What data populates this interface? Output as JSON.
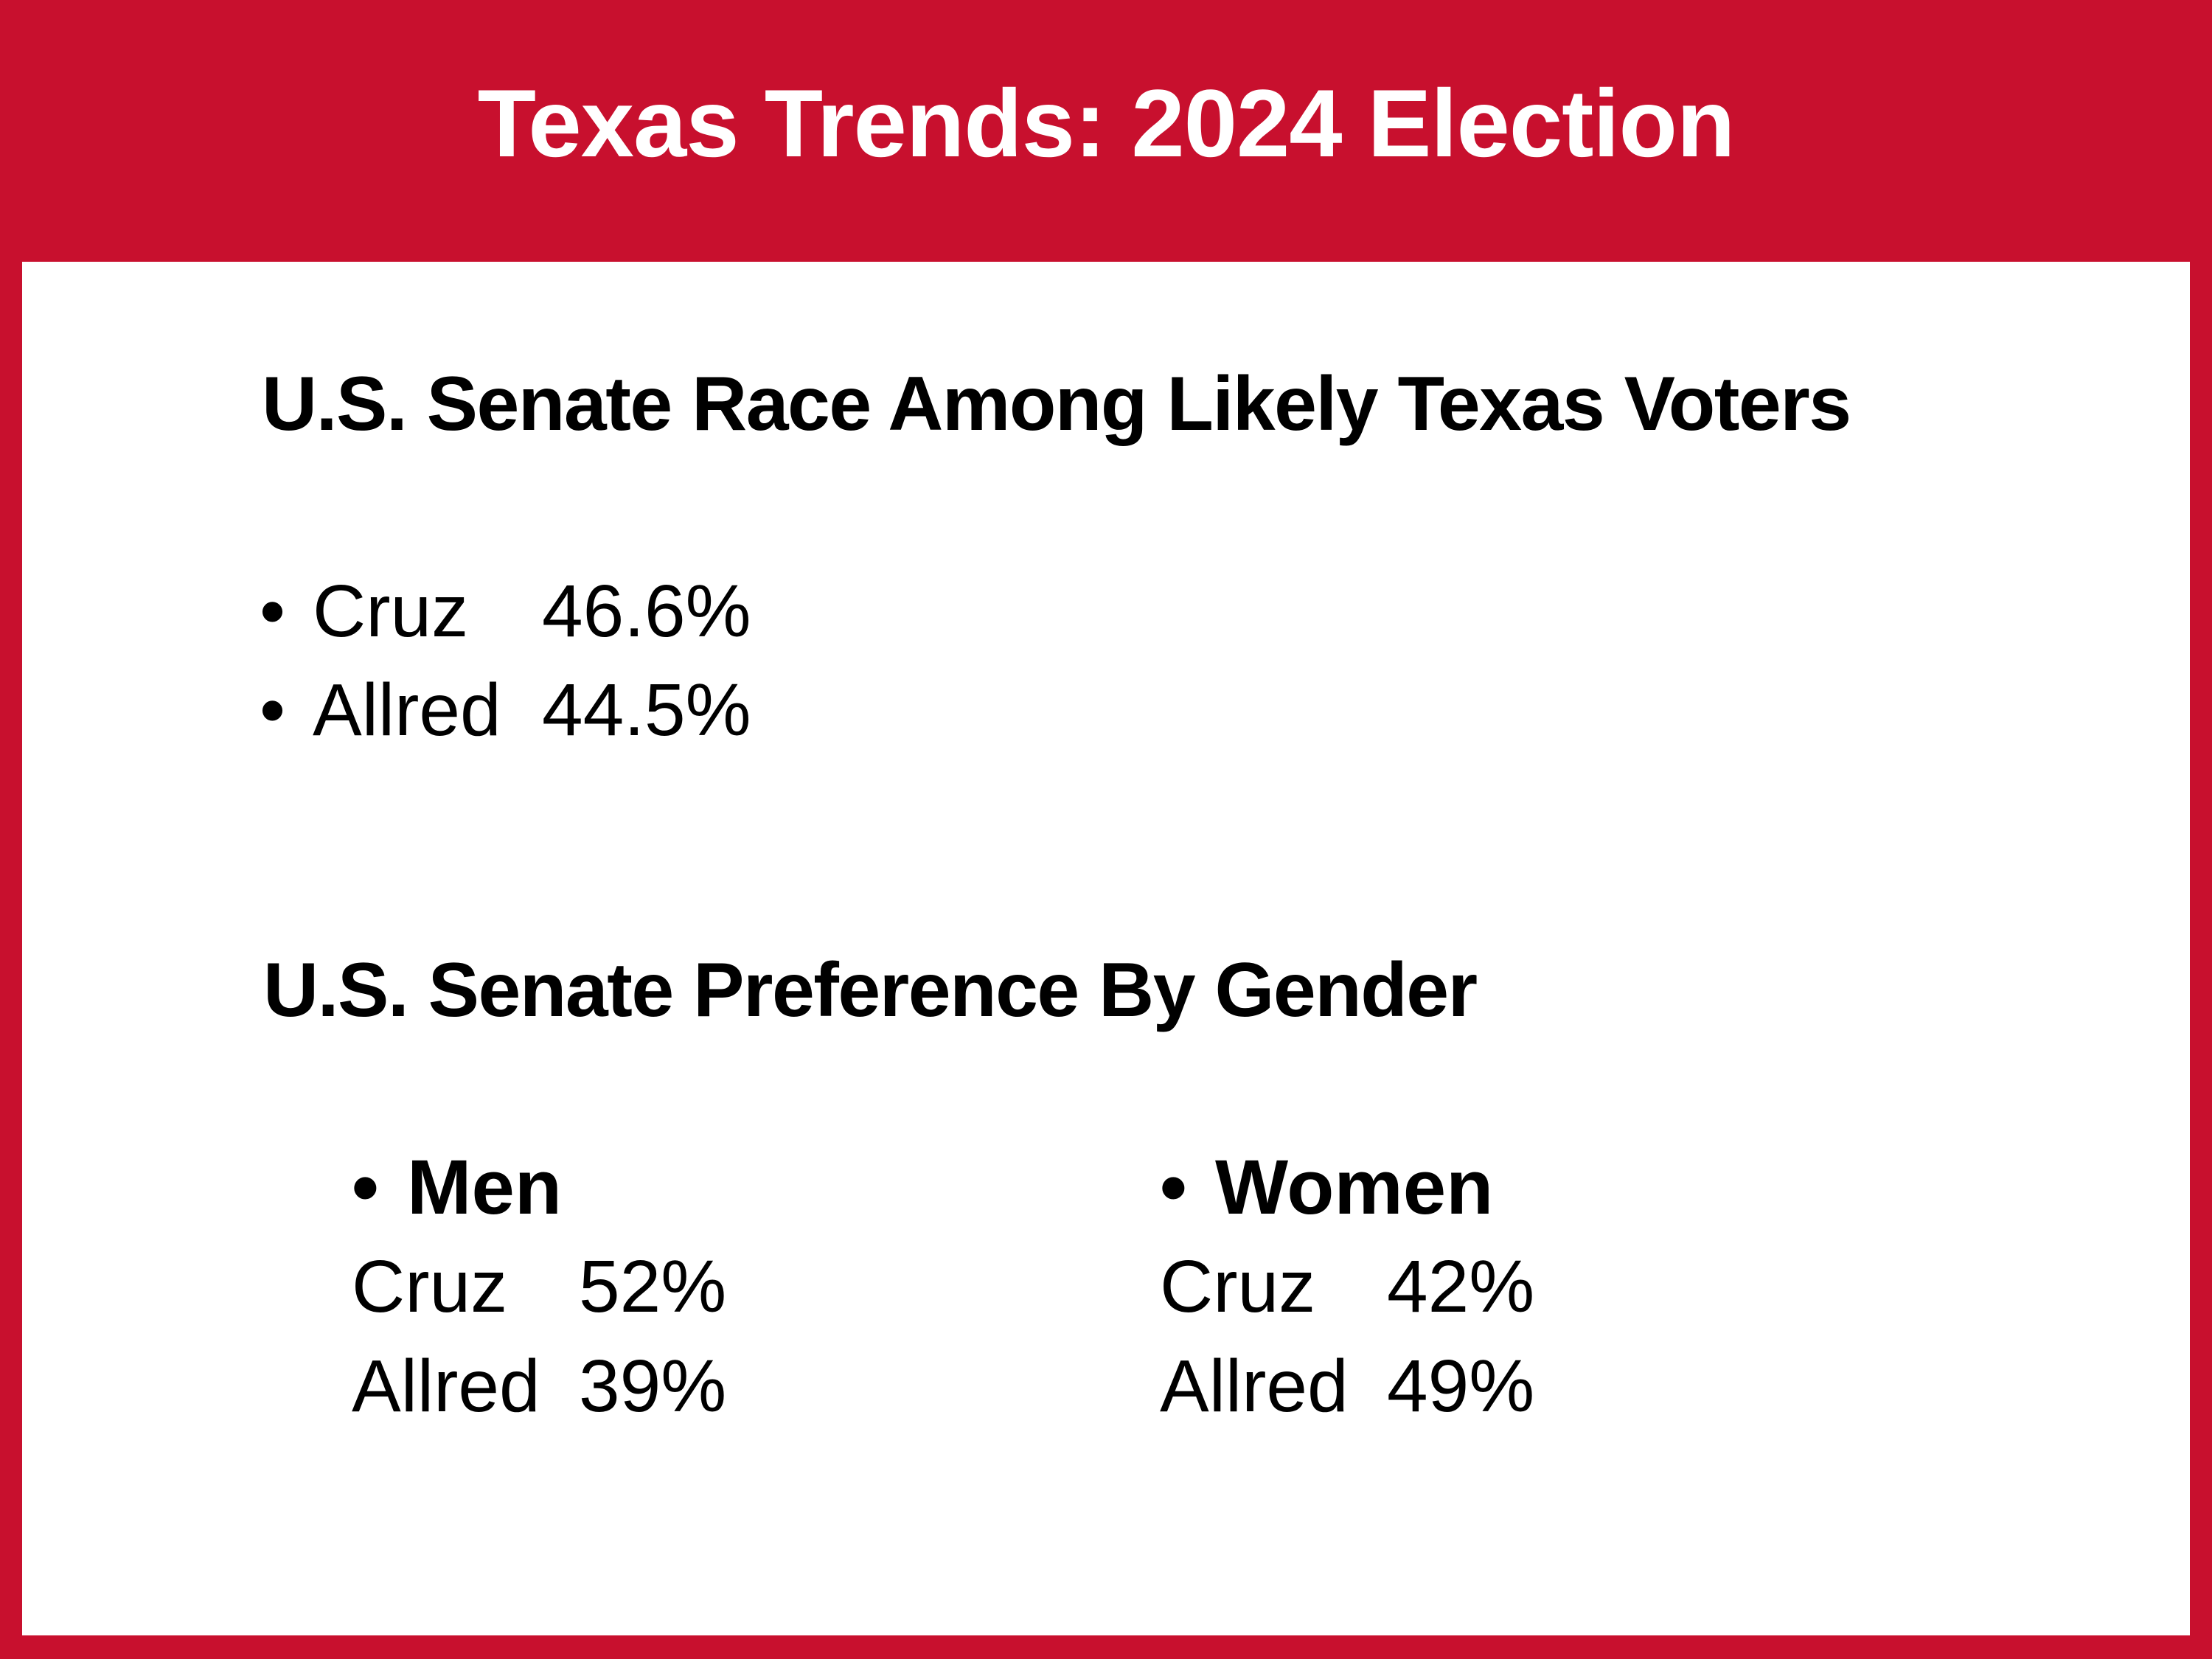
{
  "slide": {
    "title": "Texas Trends: 2024 Election"
  },
  "glyphs": {
    "bullet": "•"
  },
  "colors": {
    "brand_red": "#C8102E",
    "text_black": "#000000",
    "content_white": "#FFFFFF"
  },
  "senate_race": {
    "heading": "U.S. Senate Race Among Likely Texas Voters",
    "results": [
      {
        "candidate": "Cruz",
        "pct": "46.6%"
      },
      {
        "candidate": "Allred",
        "pct": "44.5%"
      }
    ]
  },
  "by_gender": {
    "heading": "U.S. Senate Preference By Gender",
    "groups": [
      {
        "group": "Men",
        "results": [
          {
            "candidate": "Cruz",
            "pct": "52%"
          },
          {
            "candidate": "Allred",
            "pct": "39%"
          }
        ]
      },
      {
        "group": "Women",
        "results": [
          {
            "candidate": "Cruz",
            "pct": "42%"
          },
          {
            "candidate": "Allred",
            "pct": "49%"
          }
        ]
      }
    ]
  }
}
